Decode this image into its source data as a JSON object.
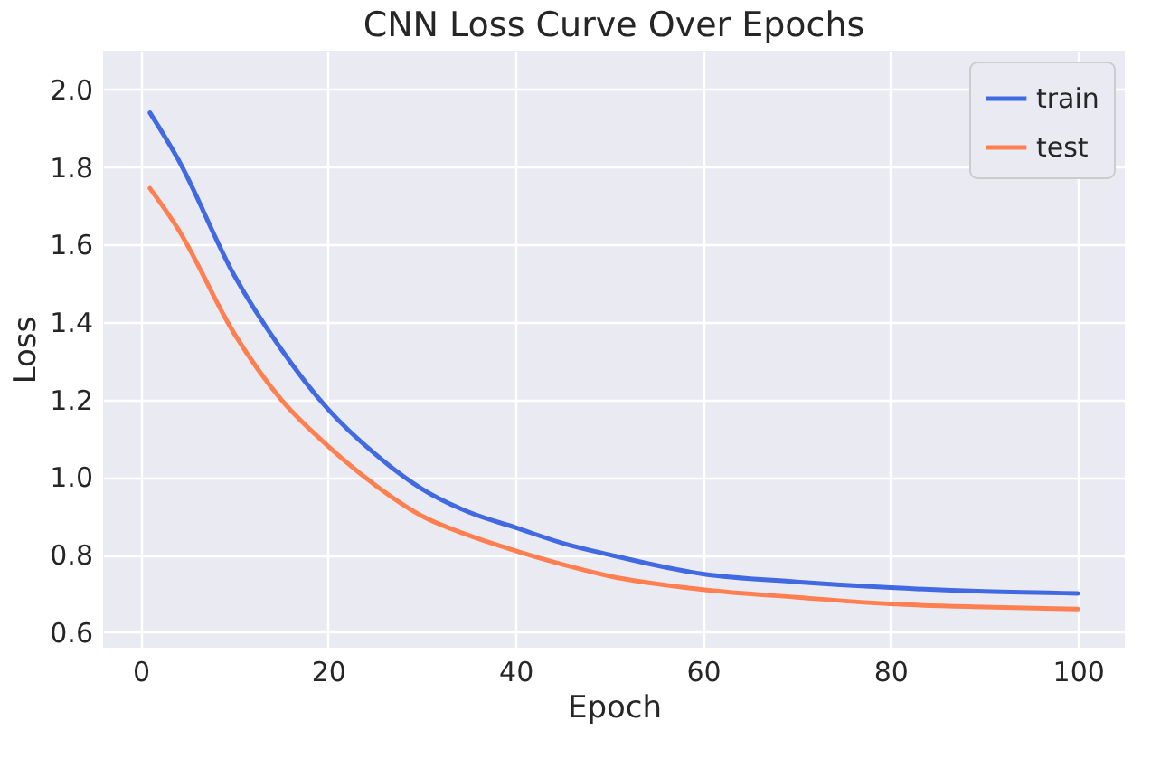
{
  "chart_data": {
    "type": "line",
    "title": "CNN Loss Curve Over Epochs",
    "xlabel": "Epoch",
    "ylabel": "Loss",
    "x": [
      1,
      4,
      10,
      15,
      20,
      25,
      30,
      35,
      40,
      45,
      50,
      60,
      70,
      80,
      90,
      100
    ],
    "series": [
      {
        "name": "train",
        "color": "#4169e1",
        "values": [
          1.94,
          1.82,
          1.52,
          1.33,
          1.175,
          1.06,
          0.97,
          0.91,
          0.87,
          0.83,
          0.8,
          0.75,
          0.73,
          0.715,
          0.705,
          0.7
        ]
      },
      {
        "name": "test",
        "color": "#ff7f50",
        "values": [
          1.745,
          1.64,
          1.37,
          1.2,
          1.08,
          0.98,
          0.9,
          0.85,
          0.81,
          0.775,
          0.745,
          0.71,
          0.69,
          0.673,
          0.665,
          0.66
        ]
      }
    ],
    "xlim": [
      -4,
      105
    ],
    "xticks": [
      0,
      20,
      40,
      60,
      80,
      100
    ],
    "ylim": [
      0.56,
      2.1
    ],
    "yticks": [
      0.6,
      0.8,
      {
        "value": 1,
        "label": "1.0"
      },
      1.2,
      1.4,
      1.6,
      1.8,
      {
        "value": 2,
        "label": "2.0"
      }
    ],
    "grid": true,
    "legend": "top right",
    "marker": "none",
    "line_style": "solid"
  }
}
